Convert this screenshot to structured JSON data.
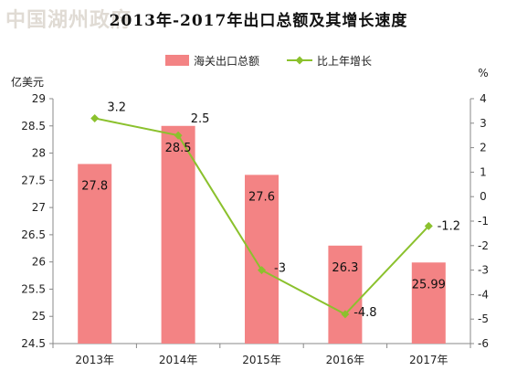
{
  "watermark": "中国湖州政府",
  "title": "2013年-2017年出口总额及其增长速度",
  "chart_data": {
    "type": "bar",
    "categories": [
      "2013年",
      "2014年",
      "2015年",
      "2016年",
      "2017年"
    ],
    "series": [
      {
        "name": "海关出口总额",
        "type": "bar",
        "values": [
          27.8,
          28.5,
          27.6,
          26.3,
          25.99
        ],
        "labels": [
          "27.8",
          "28.5",
          "27.6",
          "26.3",
          "25.99"
        ],
        "color": "#f38384",
        "axis": "left"
      },
      {
        "name": "比上年增长",
        "type": "line",
        "values": [
          3.2,
          2.5,
          -3,
          -4.8,
          -1.2
        ],
        "labels": [
          "3.2",
          "2.5",
          "-3",
          "-4.8",
          "-1.2"
        ],
        "color": "#8bc12d",
        "axis": "right"
      }
    ],
    "ylabel": "亿美元",
    "y2label": "%",
    "ylim": [
      24.5,
      29
    ],
    "y2lim": [
      -6,
      4
    ],
    "yticks": [
      "24.5",
      "25",
      "25.5",
      "26",
      "26.5",
      "27",
      "27.5",
      "28",
      "28.5",
      "29"
    ],
    "y2ticks": [
      "-6",
      "-5",
      "-4",
      "-3",
      "-2",
      "-1",
      "0",
      "1",
      "2",
      "3",
      "4"
    ],
    "legend": "top",
    "grid": false
  }
}
